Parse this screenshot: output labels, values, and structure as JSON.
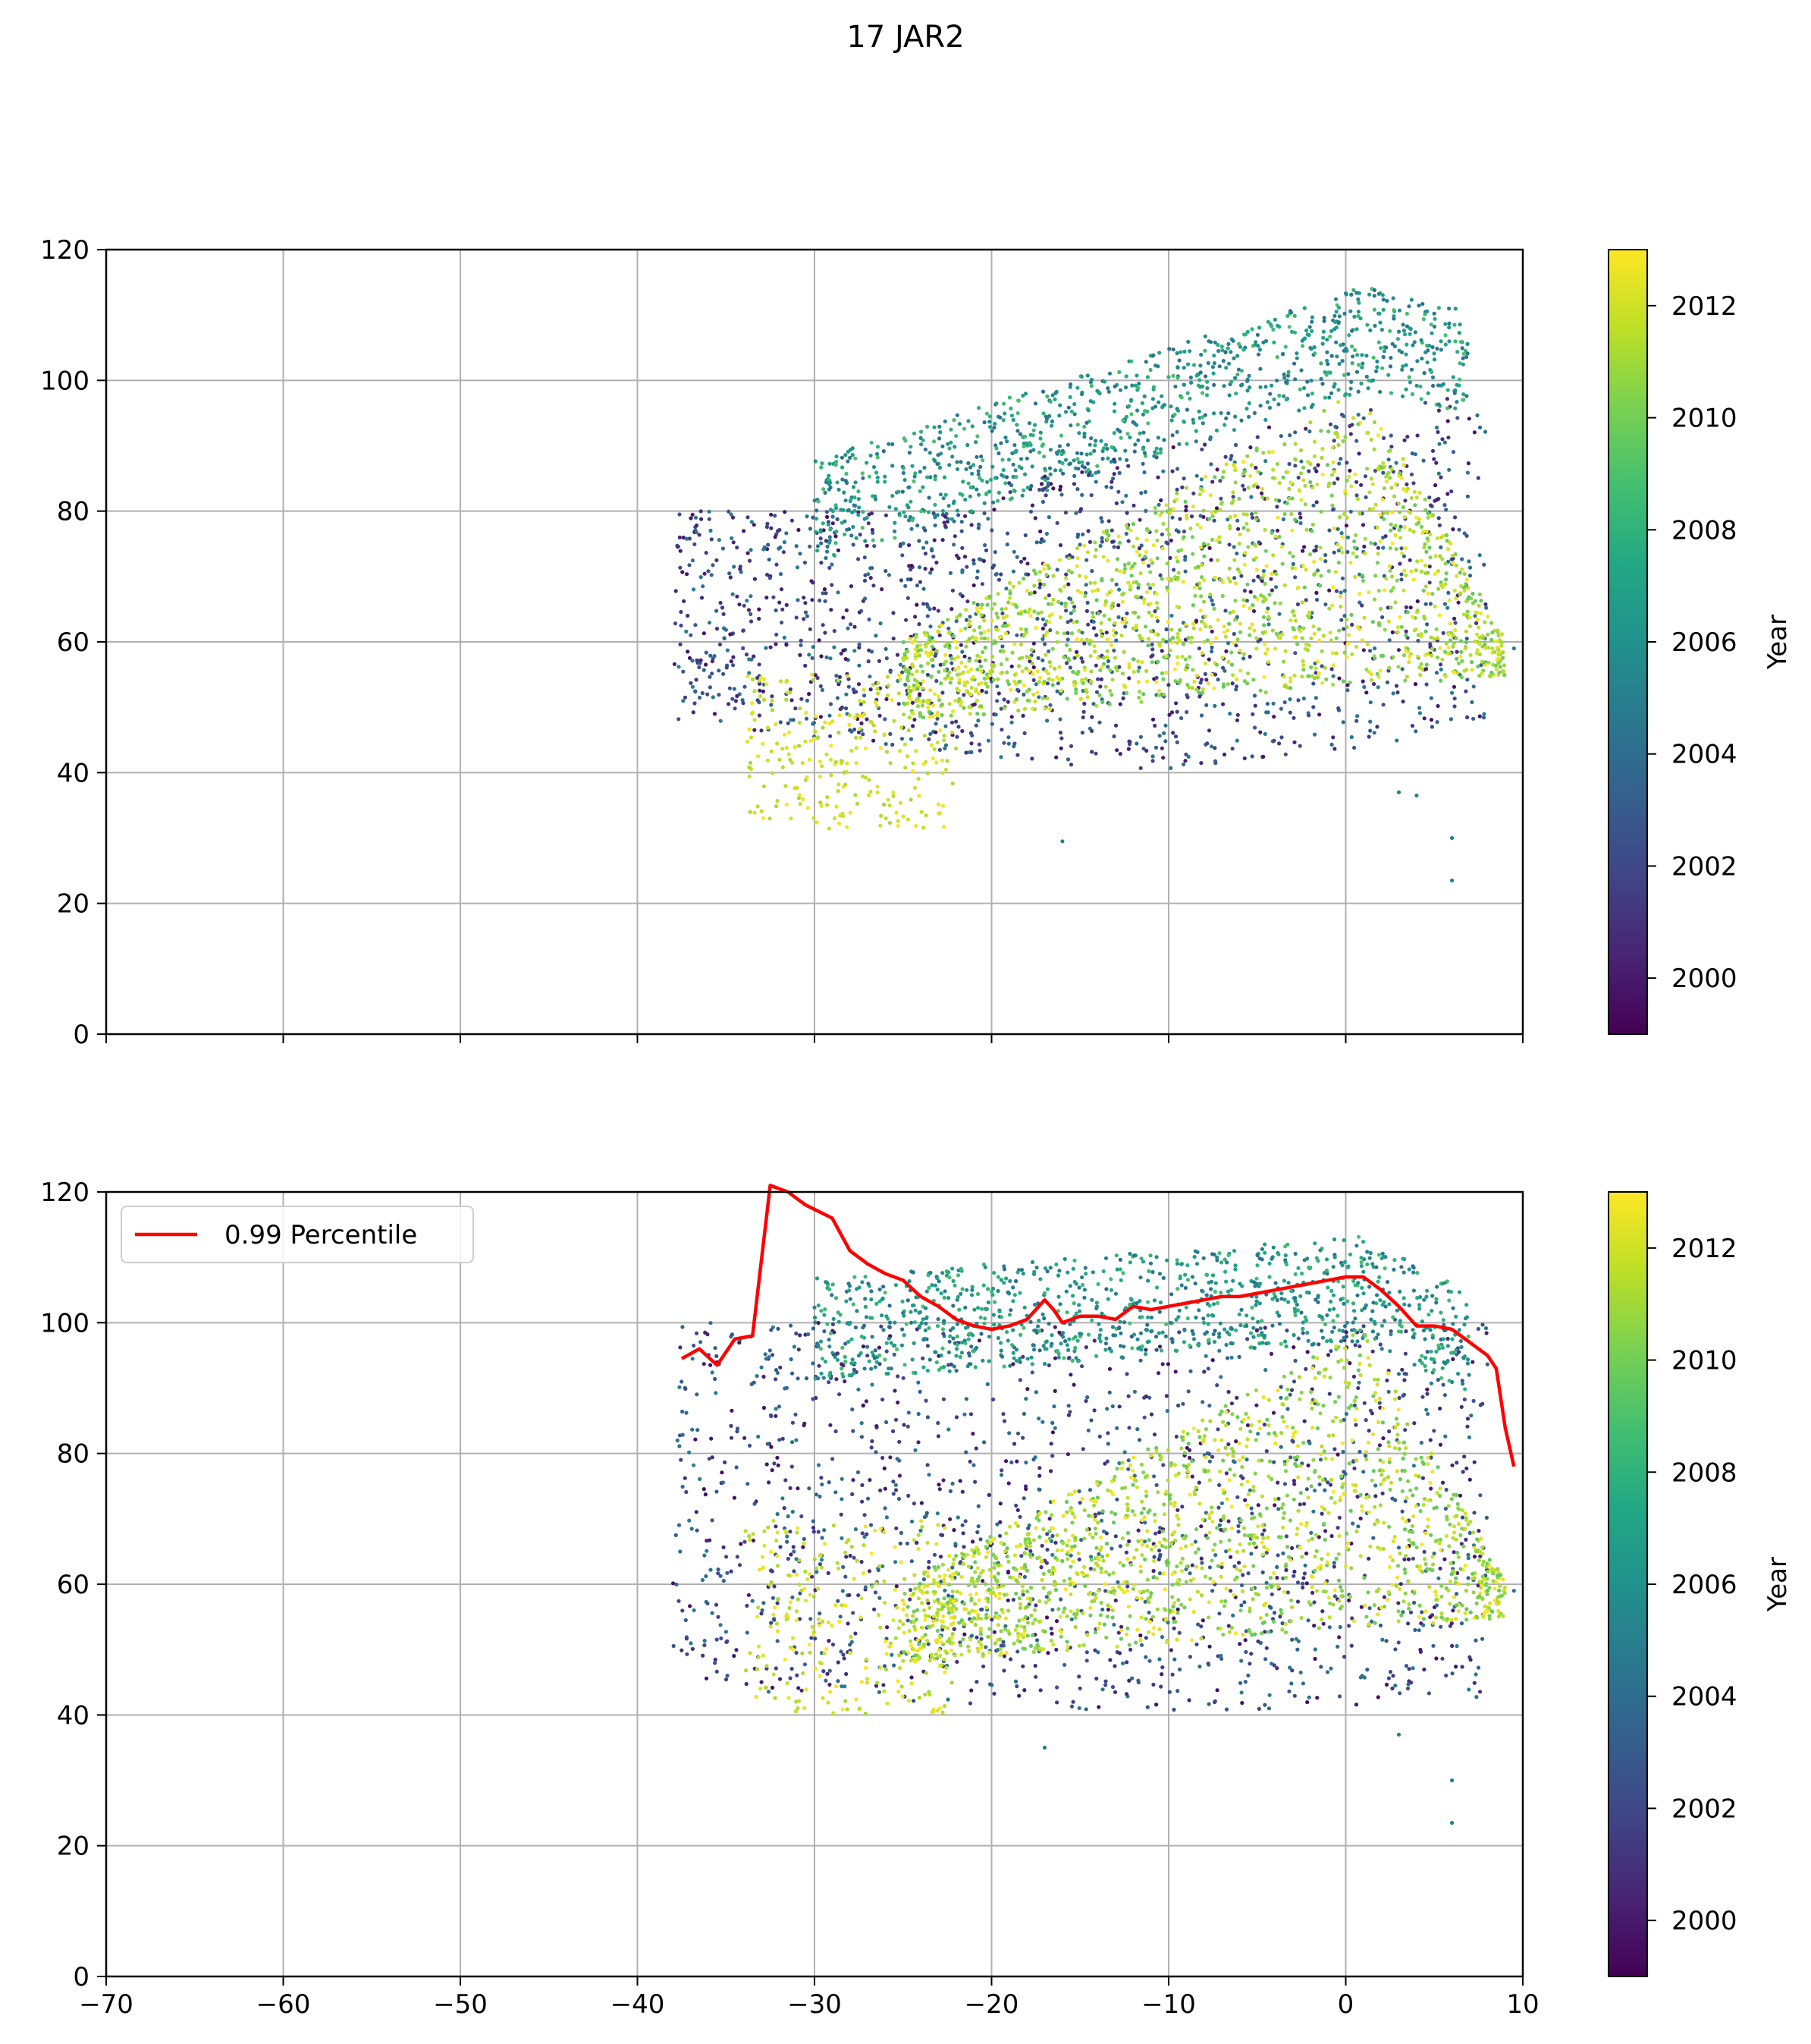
{
  "figure": {
    "suptitle": "17 JAR2"
  },
  "chart_data": [
    {
      "type": "scatter",
      "title": "",
      "xlabel": "",
      "ylabel": "",
      "xlim": [
        -70,
        10
      ],
      "ylim": [
        0,
        120
      ],
      "x_ticks": [
        -70,
        -60,
        -50,
        -40,
        -30,
        -20,
        -10,
        0,
        10
      ],
      "x_tick_labels_visible": false,
      "y_ticks": [
        0,
        20,
        40,
        60,
        80,
        100,
        120
      ],
      "grid": true,
      "colormap": "viridis",
      "color_dimension": "Year",
      "colorbar": {
        "label": "Year",
        "range": [
          1999,
          2013
        ],
        "ticks": [
          2000,
          2002,
          2004,
          2006,
          2008,
          2010,
          2012
        ]
      },
      "point_clusters": [
        {
          "name": "older upper band",
          "year_range": [
            2004,
            2009
          ],
          "x_range": [
            -30,
            8
          ],
          "y_trend": "rises from ~80 at x=-30 to ~106 at x=1"
        },
        {
          "name": "older lower cloud",
          "year_range": [
            2000,
            2005
          ],
          "x_range": [
            -38,
            8
          ],
          "y_range": [
            35,
            85
          ]
        },
        {
          "name": "recent wedge",
          "year_range": [
            2010,
            2013
          ],
          "x_range": [
            -25,
            9
          ],
          "y_trend": "upper edge rises from ~60 at x=-25 to ~99 at x=1 then drops to ~60 at x=9"
        },
        {
          "name": "recent low cluster",
          "year_range": [
            2011,
            2013
          ],
          "x_range": [
            -34,
            -22
          ],
          "y_range": [
            31,
            55
          ]
        }
      ],
      "outliers": [
        {
          "x": 6.0,
          "y": 30.0
        },
        {
          "x": 6.0,
          "y": 23.5
        },
        {
          "x": 3.0,
          "y": 37.0
        },
        {
          "x": 4.0,
          "y": 36.5
        },
        {
          "x": -16.0,
          "y": 29.5
        },
        {
          "x": 9.5,
          "y": 59.0
        }
      ]
    },
    {
      "type": "scatter",
      "title": "",
      "xlabel": "",
      "ylabel": "",
      "xlim": [
        -70,
        10
      ],
      "ylim": [
        0,
        120
      ],
      "x_ticks": [
        -70,
        -60,
        -50,
        -40,
        -30,
        -20,
        -10,
        0,
        10
      ],
      "y_ticks": [
        0,
        20,
        40,
        60,
        80,
        100,
        120
      ],
      "grid": true,
      "colormap": "viridis",
      "color_dimension": "Year",
      "colorbar": {
        "label": "Year",
        "range": [
          1999,
          2013
        ],
        "ticks": [
          2000,
          2002,
          2004,
          2006,
          2008,
          2010,
          2012
        ]
      },
      "legend": {
        "placement": "upper-left",
        "entries": [
          "0.99 Percentile"
        ]
      },
      "point_clusters": [
        {
          "name": "older upper band",
          "year_range": [
            2004,
            2009
          ],
          "x_range": [
            -30,
            8
          ],
          "y_trend": "plateau ~100-107 across x=-25..5"
        },
        {
          "name": "older lower cloud",
          "year_range": [
            2000,
            2005
          ],
          "x_range": [
            -38,
            8
          ],
          "y_range": [
            38,
            100
          ]
        },
        {
          "name": "recent wedge",
          "year_range": [
            2010,
            2013
          ],
          "x_range": [
            -25,
            9
          ],
          "y_trend": "upper edge rises from ~65 at x=-25 to ~99 at x=1 then drops to ~60 at x=9"
        },
        {
          "name": "recent low cluster",
          "year_range": [
            2011,
            2013
          ],
          "x_range": [
            -34,
            -22
          ],
          "y_range": [
            40,
            70
          ]
        }
      ],
      "outliers": [
        {
          "x": 6.0,
          "y": 30.0
        },
        {
          "x": 6.0,
          "y": 23.5
        },
        {
          "x": 3.0,
          "y": 37.0
        },
        {
          "x": -17.0,
          "y": 35.0
        },
        {
          "x": 9.5,
          "y": 59.0
        }
      ],
      "series": [
        {
          "name": "0.99 Percentile",
          "type": "line",
          "color": "#ff0000",
          "x": [
            -37.5,
            -36.5,
            -35.5,
            -34.5,
            -33.5,
            -32.5,
            -31.5,
            -30.5,
            -29,
            -28,
            -27,
            -26,
            -25,
            -24,
            -23,
            -22,
            -21,
            -20,
            -19,
            -18,
            -17,
            -16.5,
            -16,
            -15,
            -14,
            -13,
            -12,
            -11,
            -10,
            -9,
            -8,
            -7,
            -6,
            -5,
            -4,
            -3,
            -2,
            -1,
            0,
            1,
            2,
            3,
            4,
            5,
            6,
            7,
            8,
            8.5,
            9,
            9.5
          ],
          "y": [
            94.5,
            96,
            93.5,
            97.5,
            98,
            121,
            120,
            118,
            116,
            111,
            109,
            107.5,
            106.5,
            104,
            102.5,
            100.5,
            99.5,
            99,
            99.5,
            100.5,
            103.5,
            102,
            100,
            101,
            101,
            100.5,
            102.5,
            102,
            102.5,
            103,
            103.5,
            104,
            104,
            104.5,
            105,
            105.5,
            106,
            106.5,
            107,
            107,
            105,
            102.5,
            99.5,
            99.5,
            99,
            97,
            95,
            93,
            84,
            78
          ]
        }
      ]
    }
  ]
}
